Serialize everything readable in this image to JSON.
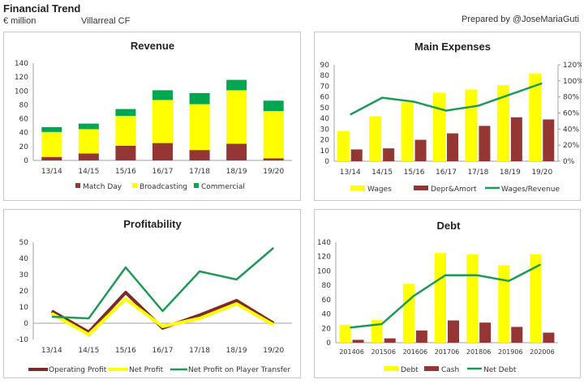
{
  "header": {
    "title": "Financial Trend",
    "unit": "€ million",
    "club": "Villarreal CF",
    "credit": "Prepared by @JoseMariaGuti"
  },
  "colors": {
    "match_day": "#943634",
    "broadcasting": "#ffff00",
    "commercial": "#00a650",
    "wages": "#ffff00",
    "depr": "#943634",
    "ratio": "#1f9a56",
    "operating": "#7f2a28",
    "net_profit": "#ffff00",
    "transfer": "#1f9a56",
    "debt": "#ffff00",
    "cash": "#943634",
    "net_debt": "#1f9a56",
    "axis": "#a0a0a0"
  },
  "chart_data": [
    {
      "id": "revenue",
      "type": "bar",
      "stacked": true,
      "title": "Revenue",
      "categories": [
        "13/14",
        "14/15",
        "15/16",
        "16/17",
        "17/18",
        "18/19",
        "19/20"
      ],
      "series": [
        {
          "name": "Match Day",
          "values": [
            5,
            10,
            21,
            25,
            15,
            24,
            3
          ]
        },
        {
          "name": "Broadcasting",
          "values": [
            36,
            35,
            43,
            62,
            66,
            77,
            68
          ]
        },
        {
          "name": "Commercial",
          "values": [
            7,
            8,
            10,
            14,
            16,
            15,
            15
          ]
        }
      ],
      "yticks": [
        "0",
        "20",
        "40",
        "60",
        "80",
        "100",
        "120",
        "140"
      ],
      "ylim": [
        0,
        140
      ],
      "legend": "bottom"
    },
    {
      "id": "expenses",
      "type": "bar",
      "title": "Main Expenses",
      "categories": [
        "13/14",
        "14/15",
        "15/16",
        "16/17",
        "17/18",
        "18/19",
        "19/20"
      ],
      "series": [
        {
          "name": "Wages",
          "values": [
            28,
            42,
            55,
            64,
            67,
            71,
            82
          ],
          "axis": "left"
        },
        {
          "name": "Depr&Amort",
          "values": [
            11,
            12,
            20,
            26,
            33,
            41,
            39
          ],
          "axis": "left"
        },
        {
          "name": "Wages/Revenue",
          "type": "line",
          "values": [
            58,
            79,
            74,
            63,
            69,
            83,
            97
          ],
          "axis": "right",
          "unit": "%"
        }
      ],
      "yticks": [
        "0",
        "10",
        "20",
        "30",
        "40",
        "50",
        "60",
        "70",
        "80",
        "90"
      ],
      "ylim": [
        0,
        90
      ],
      "y2ticks": [
        "0%",
        "20%",
        "40%",
        "60%",
        "80%",
        "100%",
        "120%"
      ],
      "y2lim": [
        0,
        120
      ],
      "legend": "bottom"
    },
    {
      "id": "profitability",
      "type": "line",
      "title": "Profitability",
      "categories": [
        "13/14",
        "14/15",
        "15/16",
        "16/17",
        "17/18",
        "18/19",
        "19/20"
      ],
      "series": [
        {
          "name": "Operating Profit",
          "values": [
            7.5,
            -5.5,
            19,
            -3,
            5,
            14,
            0
          ]
        },
        {
          "name": "Net Profit",
          "values": [
            6,
            -7,
            15,
            -2,
            3,
            12,
            -1
          ]
        },
        {
          "name": "Net Profit on Player Transfer",
          "values": [
            4,
            3,
            34.5,
            7.5,
            32,
            27,
            46.5
          ]
        }
      ],
      "yticks": [
        "-10",
        "0",
        "10",
        "20",
        "30",
        "40",
        "50"
      ],
      "ylim": [
        -10,
        50
      ],
      "legend": "bottom"
    },
    {
      "id": "debt",
      "type": "bar",
      "title": "Debt",
      "categories": [
        "201406",
        "201506",
        "201606",
        "201706",
        "201806",
        "201906",
        "202006"
      ],
      "series": [
        {
          "name": "Debt",
          "values": [
            25,
            32,
            82,
            125,
            123,
            108,
            123
          ]
        },
        {
          "name": "Cash",
          "values": [
            4,
            6,
            17,
            31,
            28,
            22,
            14
          ]
        },
        {
          "name": "Net Debt",
          "type": "line",
          "values": [
            21,
            26,
            65,
            94,
            94,
            86,
            109
          ]
        }
      ],
      "yticks": [
        "0",
        "20",
        "40",
        "60",
        "80",
        "100",
        "120",
        "140"
      ],
      "ylim": [
        0,
        140
      ],
      "legend": "bottom"
    }
  ]
}
